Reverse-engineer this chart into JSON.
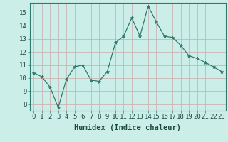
{
  "x": [
    0,
    1,
    2,
    3,
    4,
    5,
    6,
    7,
    8,
    9,
    10,
    11,
    12,
    13,
    14,
    15,
    16,
    17,
    18,
    19,
    20,
    21,
    22,
    23
  ],
  "y": [
    10.4,
    10.1,
    9.3,
    7.75,
    9.9,
    10.85,
    11.0,
    9.85,
    9.75,
    10.5,
    12.7,
    13.2,
    14.6,
    13.2,
    15.5,
    14.3,
    13.2,
    13.1,
    12.5,
    11.7,
    11.5,
    11.2,
    10.85,
    10.5
  ],
  "line_color": "#2d7a6e",
  "marker_color": "#2d7a6e",
  "bg_color": "#cceee8",
  "grid_major_color": "#c8aaaa",
  "grid_minor_color": "#ddc8c8",
  "xlabel": "Humidex (Indice chaleur)",
  "xlim": [
    -0.5,
    23.5
  ],
  "ylim": [
    7.5,
    15.75
  ],
  "yticks": [
    8,
    9,
    10,
    11,
    12,
    13,
    14,
    15
  ],
  "xticks": [
    0,
    1,
    2,
    3,
    4,
    5,
    6,
    7,
    8,
    9,
    10,
    11,
    12,
    13,
    14,
    15,
    16,
    17,
    18,
    19,
    20,
    21,
    22,
    23
  ],
  "label_fontsize": 7.5,
  "tick_fontsize": 6.5
}
